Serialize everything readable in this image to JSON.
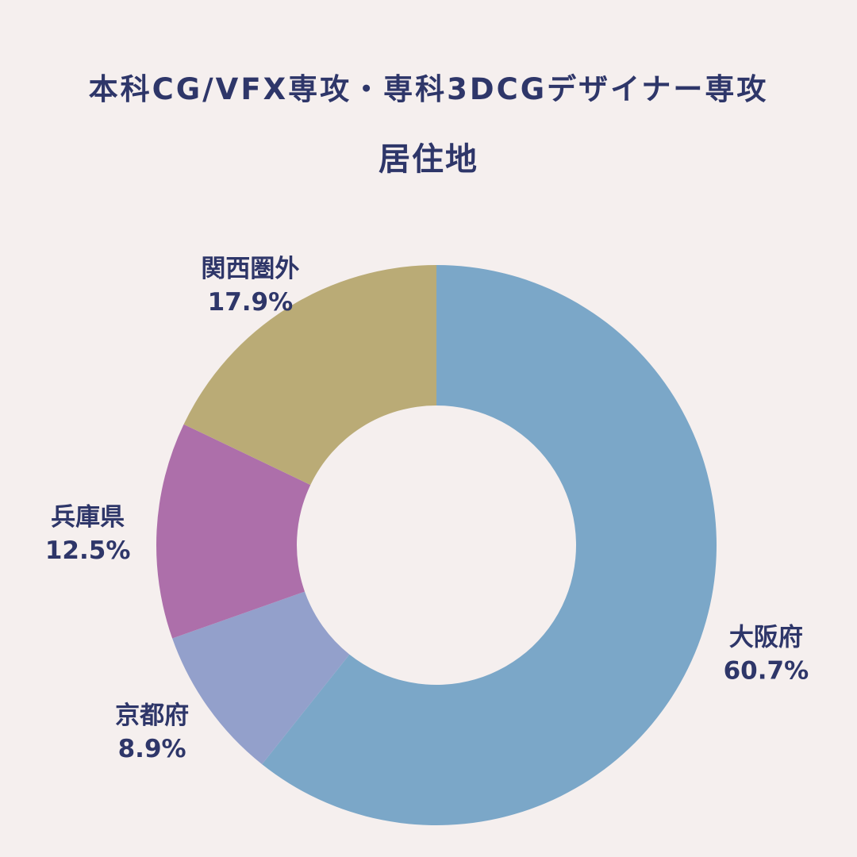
{
  "chart_data": {
    "type": "pie",
    "subtype": "donut",
    "title": "本科CG/VFX専攻・専科3DCGデザイナー専攻",
    "subtitle": "居住地",
    "slices": [
      {
        "label": "大阪府",
        "value": 60.7,
        "value_label": "60.7%",
        "color": "#7ba7c8"
      },
      {
        "label": "京都府",
        "value": 8.9,
        "value_label": "8.9%",
        "color": "#93a0cb"
      },
      {
        "label": "兵庫県",
        "value": 12.5,
        "value_label": "12.5%",
        "color": "#ad6faa"
      },
      {
        "label": "関西圏外",
        "value": 17.9,
        "value_label": "17.9%",
        "color": "#baab76"
      }
    ],
    "start": "top",
    "direction": "clockwise",
    "legend": "none"
  }
}
